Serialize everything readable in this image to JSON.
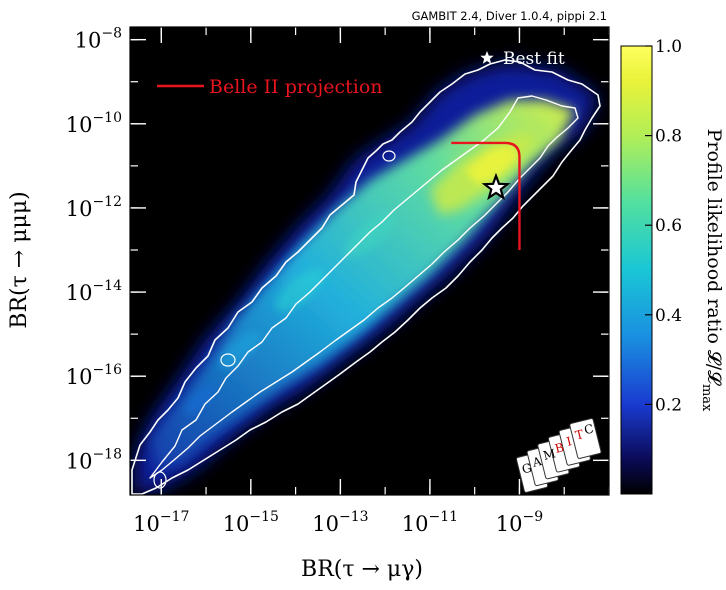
{
  "header": {
    "software_line": "GAMBIT 2.4, Diver 1.0.4, pippi 2.1"
  },
  "chart_data": {
    "type": "heatmap",
    "xlabel": "BR(τ → μγ)",
    "ylabel": "BR(τ → μμμ)",
    "x_scale": "log",
    "y_scale": "log",
    "xlim": [
      2e-18,
      1e-07
    ],
    "ylim": [
      1.5e-19,
      2e-08
    ],
    "x_ticks": [
      {
        "value": 1e-17,
        "base": "10",
        "exp": "−17"
      },
      {
        "value": 1e-15,
        "base": "10",
        "exp": "−15"
      },
      {
        "value": 1e-13,
        "base": "10",
        "exp": "−13"
      },
      {
        "value": 1e-11,
        "base": "10",
        "exp": "−11"
      },
      {
        "value": 1e-09,
        "base": "10",
        "exp": "−9"
      }
    ],
    "y_ticks": [
      {
        "value": 1e-08,
        "base": "10",
        "exp": "−8"
      },
      {
        "value": 1e-10,
        "base": "10",
        "exp": "−10"
      },
      {
        "value": 1e-12,
        "base": "10",
        "exp": "−12"
      },
      {
        "value": 1e-14,
        "base": "10",
        "exp": "−14"
      },
      {
        "value": 1e-16,
        "base": "10",
        "exp": "−16"
      },
      {
        "value": 1e-18,
        "base": "10",
        "exp": "−18"
      }
    ],
    "colorbar": {
      "label": "Profile likelihood ratio 𝓛/𝓛",
      "label_sub": "max",
      "range": [
        0,
        1
      ],
      "ticks": [
        {
          "value": 0.2,
          "label": "0.2"
        },
        {
          "value": 0.4,
          "label": "0.4"
        },
        {
          "value": 0.6,
          "label": "0.6"
        },
        {
          "value": 0.8,
          "label": "0.8"
        },
        {
          "value": 1.0,
          "label": "1.0"
        }
      ],
      "colormap": [
        "#000000",
        "#0b0b5a",
        "#1a3bd0",
        "#1a9be0",
        "#1cd9c9",
        "#7fe87a",
        "#e8f23a",
        "#ffff60"
      ]
    },
    "band": {
      "ridge": [
        {
          "x": 1e-18,
          "y": 2e-19
        },
        {
          "x": 1e-16,
          "y": 1e-17
        },
        {
          "x": 1e-14,
          "y": 1e-15
        },
        {
          "x": 1e-12,
          "y": 1e-13
        },
        {
          "x": 1e-10,
          "y": 3e-12
        },
        {
          "x": 1e-09,
          "y": 5e-11
        },
        {
          "x": 1e-08,
          "y": 3e-10
        }
      ],
      "peak_likelihood": 1.0
    },
    "best_fit": {
      "x": 3e-10,
      "y": 3e-12,
      "label": "Best fit",
      "marker": "star"
    },
    "belle_projection": {
      "label": "Belle II projection",
      "color": "#e8141e",
      "br_mugamma_limit": 1e-09,
      "br_mumumu_limit": 3.5e-11,
      "x_start": 3e-11,
      "y_end": 1e-13
    },
    "contour_color": "#ffffff",
    "grid": false,
    "legend_position": "top"
  }
}
